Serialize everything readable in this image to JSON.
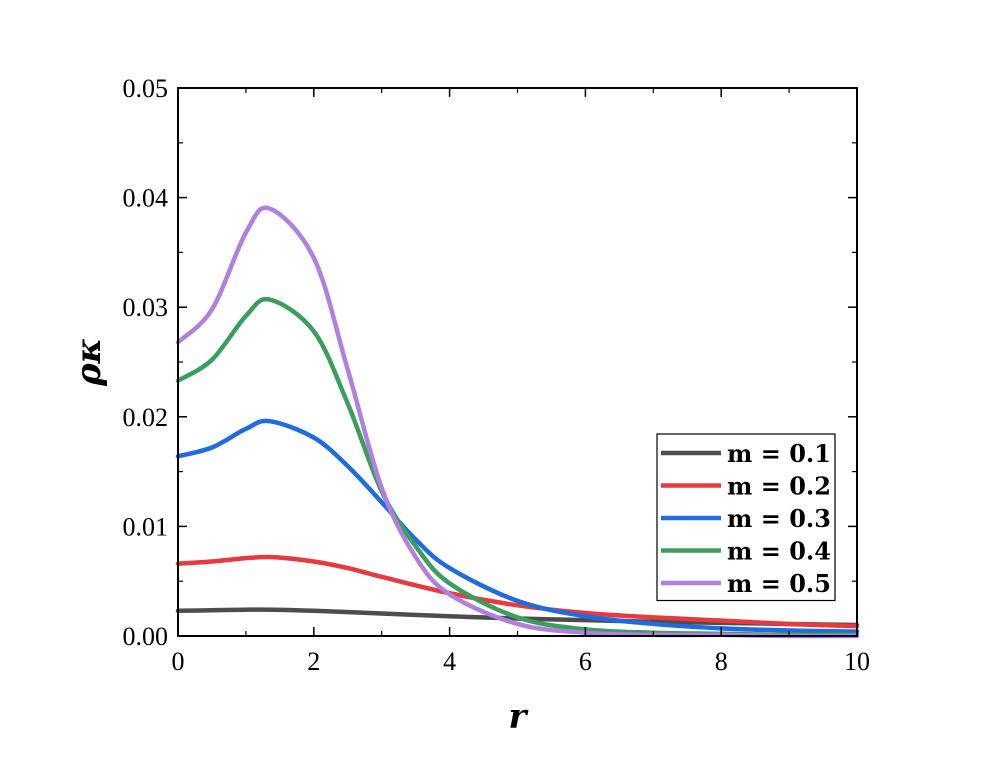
{
  "chart_data": {
    "type": "line",
    "xlabel": "r",
    "ylabel": "ρκ",
    "xlim": [
      0,
      10
    ],
    "ylim": [
      0,
      0.05
    ],
    "xticks": [
      "0",
      "2",
      "4",
      "6",
      "8",
      "10"
    ],
    "yticks": [
      "0.00",
      "0.01",
      "0.02",
      "0.03",
      "0.04",
      "0.05"
    ],
    "grid": false,
    "legend_position": "bottom-right",
    "series": [
      {
        "name": "m = 0.1",
        "color": "#4d4d4d",
        "x": [
          0,
          0.5,
          1,
          1.4,
          2,
          3,
          4,
          5,
          6,
          7,
          8,
          9,
          10
        ],
        "y": [
          0.0023,
          0.00235,
          0.0024,
          0.0024,
          0.0023,
          0.00205,
          0.0018,
          0.0016,
          0.00145,
          0.0013,
          0.0012,
          0.0011,
          0.001
        ]
      },
      {
        "name": "m = 0.2",
        "color": "#e8393c",
        "x": [
          0,
          0.5,
          1,
          1.4,
          2,
          2.5,
          3,
          4,
          5,
          6,
          7,
          8,
          9,
          10
        ],
        "y": [
          0.0066,
          0.0068,
          0.0071,
          0.0072,
          0.0068,
          0.0062,
          0.0054,
          0.0039,
          0.0028,
          0.0021,
          0.0017,
          0.0014,
          0.0011,
          0.0009
        ]
      },
      {
        "name": "m = 0.3",
        "color": "#1f6be0",
        "x": [
          0,
          0.5,
          1,
          1.35,
          2,
          2.5,
          3,
          3.5,
          4,
          5,
          6,
          7,
          8,
          9,
          10
        ],
        "y": [
          0.0164,
          0.0172,
          0.0189,
          0.0196,
          0.0181,
          0.0155,
          0.0122,
          0.0088,
          0.0062,
          0.0032,
          0.0018,
          0.0011,
          0.0007,
          0.0005,
          0.0004
        ]
      },
      {
        "name": "m = 0.4",
        "color": "#3a9e5c",
        "x": [
          0,
          0.5,
          1,
          1.35,
          2,
          2.5,
          3,
          3.5,
          4,
          5,
          6,
          7,
          8,
          9,
          10
        ],
        "y": [
          0.0233,
          0.0252,
          0.0292,
          0.0307,
          0.0278,
          0.0212,
          0.0132,
          0.0082,
          0.0048,
          0.0017,
          0.0006,
          0.0003,
          0.0002,
          0.0001,
          0.0001
        ]
      },
      {
        "name": "m = 0.5",
        "color": "#b07fdf",
        "x": [
          0,
          0.5,
          1,
          1.35,
          2,
          2.5,
          3,
          3.5,
          4,
          5,
          6,
          7,
          8,
          9,
          10
        ],
        "y": [
          0.0268,
          0.0298,
          0.0368,
          0.039,
          0.0345,
          0.0243,
          0.0135,
          0.0072,
          0.0038,
          0.0011,
          0.0003,
          0.0001,
          0.0001,
          0.0,
          0.0
        ]
      }
    ]
  }
}
